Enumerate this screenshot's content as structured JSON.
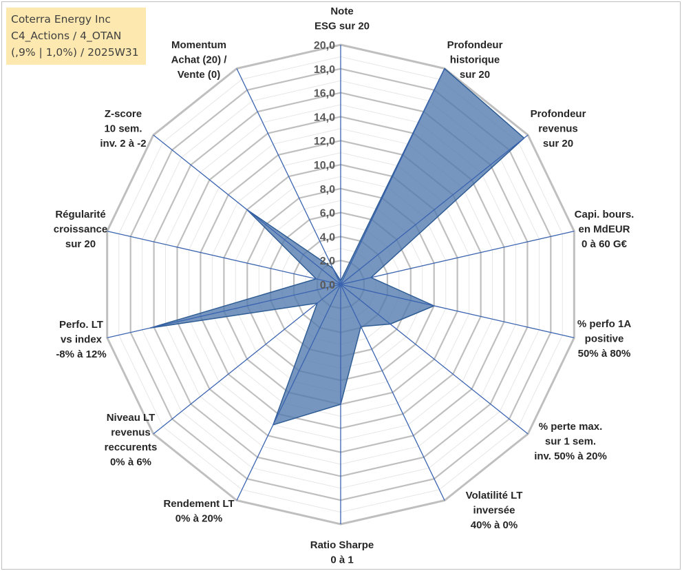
{
  "info": {
    "line1": "Coterra Energy Inc",
    "line2": "C4_Actions / 4_OTAN",
    "line3": "(,9% | 1,0%) / 2025W31"
  },
  "chart_data": {
    "type": "radar",
    "rlim": [
      0,
      20
    ],
    "r_ticks": [
      "0,0",
      "2,0",
      "4,0",
      "6,0",
      "8,0",
      "10,0",
      "12,0",
      "14,0",
      "16,0",
      "18,0",
      "20,0"
    ],
    "grid": true,
    "categories": [
      [
        "Note",
        "ESG sur 20"
      ],
      [
        "Profondeur",
        "historique",
        "sur 20"
      ],
      [
        "Profondeur",
        "revenus",
        "sur 20"
      ],
      [
        "Capi. bours.",
        "en MdEUR",
        "0 à 60 G€"
      ],
      [
        "% perfo 1A",
        "positive",
        "50% à 80%"
      ],
      [
        "% perte max.",
        "sur 1 sem.",
        "inv. 50% à 20%"
      ],
      [
        "Volatilité LT",
        "inversée",
        "40% à 0%"
      ],
      [
        "Ratio Sharpe",
        "0 à 1"
      ],
      [
        "Rendement LT",
        "0% à 20%"
      ],
      [
        "Niveau LT",
        "revenus",
        "reccurents",
        "0% à 6%"
      ],
      [
        "Perfo. LT",
        "vs index",
        "-8% à 12%"
      ],
      [
        "Régularité",
        "croissance",
        "sur 20"
      ],
      [
        "Z-score",
        "10 sem.",
        "inv. 2 à -2"
      ],
      [
        "Momentum",
        "Achat (20) /",
        "Vente (0)"
      ]
    ],
    "series": [
      {
        "values": [
          0.3,
          20.0,
          19.6,
          2.6,
          8.0,
          5.3,
          3.9,
          10.0,
          13.0,
          2.5,
          16.3,
          2.1,
          10.0,
          1.5
        ],
        "fill": "#4f79ad",
        "fill_opacity": 0.78,
        "stroke": "#2e5c94"
      }
    ],
    "colors": {
      "grid": "#bfbfbf",
      "spoke": "#3a63b0"
    }
  }
}
